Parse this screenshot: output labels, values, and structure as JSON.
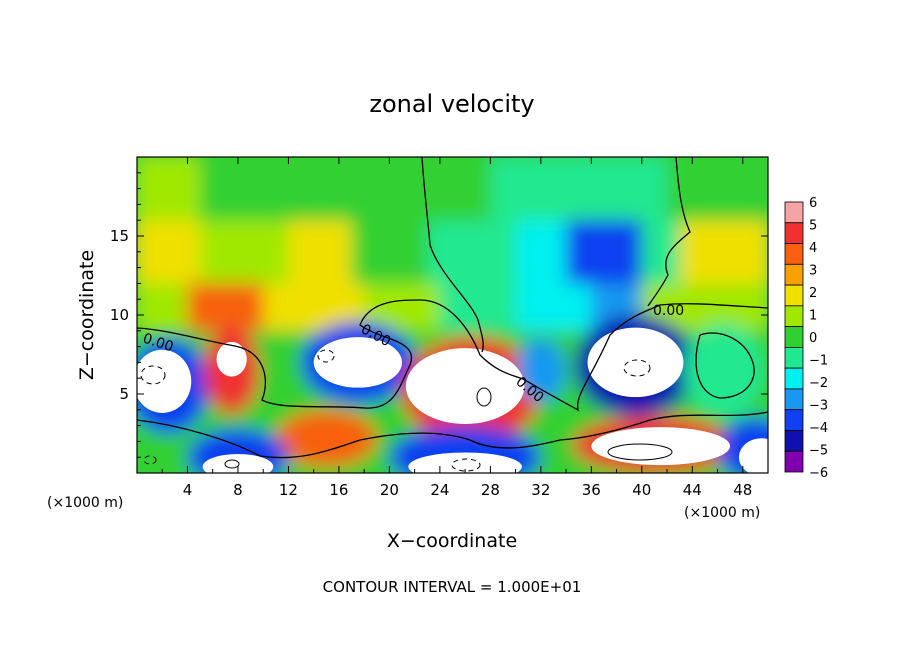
{
  "chart_data": {
    "type": "heatmap",
    "title": "zonal velocity",
    "xlabel": "X−coordinate",
    "ylabel": "Z−coordinate",
    "x_unit_left": "(×1000 m)",
    "x_unit_right": "(×1000 m)",
    "footer": "CONTOUR INTERVAL = 1.000E+01",
    "xlim": [
      0,
      50
    ],
    "ylim": [
      0,
      20
    ],
    "x_ticks": [
      4,
      8,
      12,
      16,
      20,
      24,
      28,
      32,
      36,
      40,
      44,
      48
    ],
    "y_ticks": [
      5,
      10,
      15
    ],
    "colorbar": {
      "levels": [
        6,
        5,
        4,
        3,
        2,
        1,
        0,
        -1,
        -2,
        -3,
        -4,
        -5,
        -6
      ],
      "labels": [
        "6",
        "5",
        "4",
        "3",
        "2",
        "1",
        "0",
        "−1",
        "−2",
        "−3",
        "−4",
        "−5",
        "−6"
      ],
      "colors": [
        "#f4a4a4",
        "#f03030",
        "#f86010",
        "#f8a000",
        "#f0e000",
        "#a0e800",
        "#30d030",
        "#20e890",
        "#00f0f0",
        "#1898f0",
        "#1040f0",
        "#1010b0",
        "#8000b0"
      ]
    },
    "contour_labels": [
      "0.00",
      "0.00",
      "0.00",
      "0.00"
    ],
    "cells": [
      {
        "x": [
          0,
          5
        ],
        "z": [
          16,
          20
        ],
        "v": 1
      },
      {
        "x": [
          5,
          12
        ],
        "z": [
          16,
          20
        ],
        "v": 0
      },
      {
        "x": [
          12,
          22
        ],
        "z": [
          16,
          20
        ],
        "v": 0
      },
      {
        "x": [
          22,
          28
        ],
        "z": [
          16,
          20
        ],
        "v": 0
      },
      {
        "x": [
          28,
          34
        ],
        "z": [
          16,
          20
        ],
        "v": -1
      },
      {
        "x": [
          34,
          42
        ],
        "z": [
          16,
          20
        ],
        "v": -1
      },
      {
        "x": [
          42,
          50
        ],
        "z": [
          16,
          20
        ],
        "v": 0
      },
      {
        "x": [
          0,
          5
        ],
        "z": [
          12,
          16
        ],
        "v": 2
      },
      {
        "x": [
          5,
          12
        ],
        "z": [
          12,
          16
        ],
        "v": 1
      },
      {
        "x": [
          12,
          17
        ],
        "z": [
          12,
          16
        ],
        "v": 2
      },
      {
        "x": [
          17,
          23
        ],
        "z": [
          12,
          16
        ],
        "v": 0
      },
      {
        "x": [
          23,
          30
        ],
        "z": [
          12,
          16
        ],
        "v": -1
      },
      {
        "x": [
          30,
          34
        ],
        "z": [
          12,
          16
        ],
        "v": -2
      },
      {
        "x": [
          34,
          40
        ],
        "z": [
          12,
          16
        ],
        "v": -4
      },
      {
        "x": [
          40,
          43
        ],
        "z": [
          12,
          16
        ],
        "v": -1
      },
      {
        "x": [
          43,
          50
        ],
        "z": [
          12,
          16
        ],
        "v": 2
      },
      {
        "x": [
          0,
          4
        ],
        "z": [
          9,
          12
        ],
        "v": 1
      },
      {
        "x": [
          4,
          10
        ],
        "z": [
          9,
          12
        ],
        "v": 4
      },
      {
        "x": [
          10,
          18
        ],
        "z": [
          9,
          12
        ],
        "v": 2
      },
      {
        "x": [
          18,
          24
        ],
        "z": [
          9,
          12
        ],
        "v": 1
      },
      {
        "x": [
          24,
          30
        ],
        "z": [
          9,
          12
        ],
        "v": -1
      },
      {
        "x": [
          30,
          36
        ],
        "z": [
          9,
          12
        ],
        "v": -2
      },
      {
        "x": [
          36,
          40
        ],
        "z": [
          9,
          12
        ],
        "v": -3
      },
      {
        "x": [
          40,
          50
        ],
        "z": [
          9,
          12
        ],
        "v": 1
      }
    ],
    "blobs": [
      {
        "cx": 2.5,
        "cz": 5.5,
        "rx": 3.2,
        "rz": 3.0,
        "v": -4
      },
      {
        "cx": 7.5,
        "cz": 6.5,
        "rx": 2.2,
        "rz": 2.8,
        "v": 5
      },
      {
        "cx": 17.5,
        "cz": 7.0,
        "rx": 4.5,
        "rz": 2.6,
        "v": -4
      },
      {
        "cx": 26.5,
        "cz": 5.2,
        "rx": 5.5,
        "rz": 3.4,
        "v": 5
      },
      {
        "cx": 32.0,
        "cz": 6.5,
        "rx": 2.0,
        "rz": 2.0,
        "v": -3
      },
      {
        "cx": 39.5,
        "cz": 6.8,
        "rx": 4.8,
        "rz": 3.2,
        "v": -5
      },
      {
        "cx": 46.5,
        "cz": 6.5,
        "rx": 3.2,
        "rz": 3.0,
        "v": -1
      },
      {
        "cx": 15.0,
        "cz": 2.2,
        "rx": 4.0,
        "rz": 1.8,
        "v": 4
      },
      {
        "cx": 8.0,
        "cz": 1.0,
        "rx": 4.0,
        "rz": 1.8,
        "v": -4
      },
      {
        "cx": 26.0,
        "cz": 1.0,
        "rx": 6.0,
        "rz": 2.0,
        "v": -4
      },
      {
        "cx": 41.0,
        "cz": 1.8,
        "rx": 6.5,
        "rz": 1.8,
        "v": 5
      },
      {
        "cx": 49.0,
        "cz": 1.5,
        "rx": 3.0,
        "rz": 2.0,
        "v": -4
      }
    ],
    "saturated": [
      {
        "cx": 2.0,
        "cz": 5.8,
        "rx": 2.3,
        "rz": 2.0
      },
      {
        "cx": 7.5,
        "cz": 7.2,
        "rx": 1.2,
        "rz": 1.1
      },
      {
        "cx": 17.5,
        "cz": 7.0,
        "rx": 3.5,
        "rz": 1.6
      },
      {
        "cx": 26.0,
        "cz": 5.5,
        "rx": 4.7,
        "rz": 2.4
      },
      {
        "cx": 39.5,
        "cz": 7.0,
        "rx": 3.8,
        "rz": 2.2
      },
      {
        "cx": 41.5,
        "cz": 1.7,
        "rx": 5.5,
        "rz": 1.2
      },
      {
        "cx": 8.0,
        "cz": 0.4,
        "rx": 2.8,
        "rz": 0.8
      },
      {
        "cx": 26.0,
        "cz": 0.4,
        "rx": 4.5,
        "rz": 0.9
      },
      {
        "cx": 49.5,
        "cz": 1.0,
        "rx": 1.8,
        "rz": 1.2
      }
    ]
  }
}
